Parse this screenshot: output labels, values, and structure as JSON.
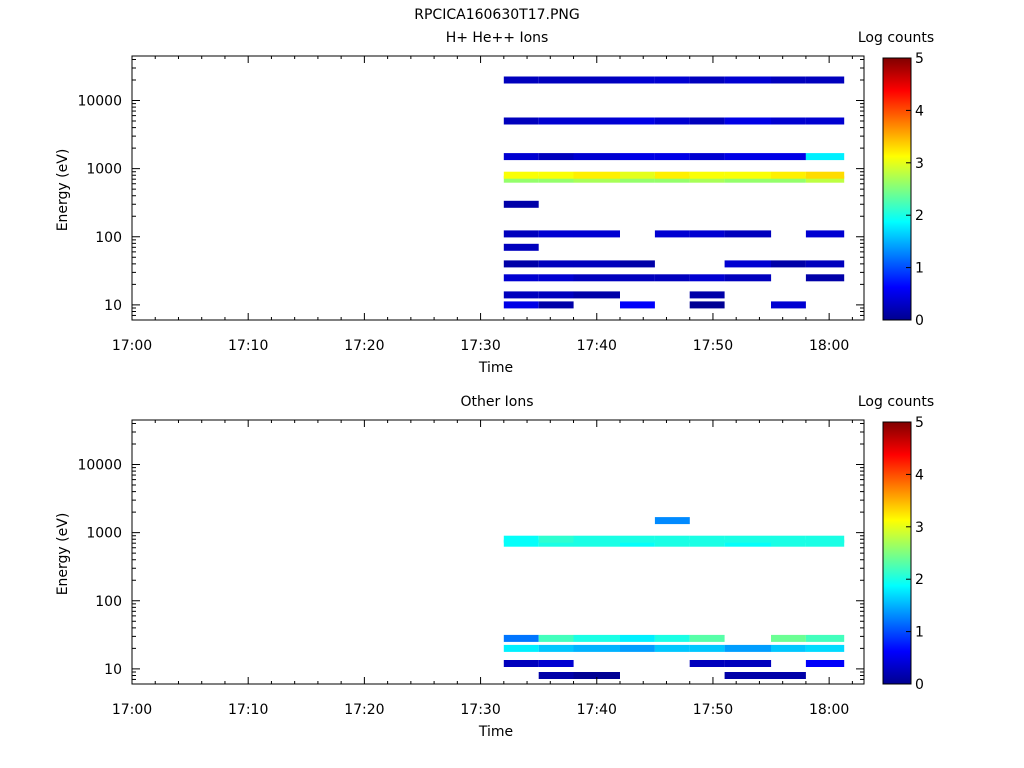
{
  "figure_title": "RPCICA160630T17.PNG",
  "chart_data": [
    {
      "type": "heatmap",
      "title": "H+ He++ Ions",
      "xlabel": "Time",
      "ylabel": "Energy (eV)",
      "x_ticks": [
        "17:00",
        "17:10",
        "17:20",
        "17:30",
        "17:40",
        "17:50",
        "18:00"
      ],
      "y_ticks": [
        "10",
        "100",
        "1000",
        "10000"
      ],
      "y_scale": "log",
      "ylim": [
        6,
        45000
      ],
      "xlim_minutes": [
        0,
        63
      ],
      "colorbar": {
        "label": "Log counts",
        "ticks": [
          "0",
          "1",
          "2",
          "3",
          "4",
          "5"
        ],
        "range": [
          0,
          5
        ]
      },
      "time_columns": [
        "17:32",
        "17:35",
        "17:38",
        "17:42",
        "17:45",
        "17:48",
        "17:51",
        "17:55",
        "17:58"
      ],
      "grid": false,
      "series": [
        {
          "time": "17:32",
          "log_counts_by_energy": [
            {
              "energy_ev": 10,
              "value": 0.5
            },
            {
              "energy_ev": 14,
              "value": 0.3
            },
            {
              "energy_ev": 25,
              "value": 0.4
            },
            {
              "energy_ev": 40,
              "value": 0.2
            },
            {
              "energy_ev": 70,
              "value": 0.3
            },
            {
              "energy_ev": 110,
              "value": 0.3
            },
            {
              "energy_ev": 300,
              "value": 0.2
            },
            {
              "energy_ev": 700,
              "value": 2.6
            },
            {
              "energy_ev": 800,
              "value": 3.1
            },
            {
              "energy_ev": 1500,
              "value": 0.4
            },
            {
              "energy_ev": 5000,
              "value": 0.3
            },
            {
              "energy_ev": 20000,
              "value": 0.3
            }
          ]
        },
        {
          "time": "17:35",
          "log_counts_by_energy": [
            {
              "energy_ev": 10,
              "value": 0.2
            },
            {
              "energy_ev": 14,
              "value": 0.3
            },
            {
              "energy_ev": 25,
              "value": 0.4
            },
            {
              "energy_ev": 40,
              "value": 0.3
            },
            {
              "energy_ev": 110,
              "value": 0.4
            },
            {
              "energy_ev": 700,
              "value": 2.6
            },
            {
              "energy_ev": 800,
              "value": 3.1
            },
            {
              "energy_ev": 1500,
              "value": 0.3
            },
            {
              "energy_ev": 5000,
              "value": 0.4
            },
            {
              "energy_ev": 20000,
              "value": 0.3
            }
          ]
        },
        {
          "time": "17:38",
          "log_counts_by_energy": [
            {
              "energy_ev": 14,
              "value": 0.2
            },
            {
              "energy_ev": 25,
              "value": 0.3
            },
            {
              "energy_ev": 40,
              "value": 0.3
            },
            {
              "energy_ev": 110,
              "value": 0.4
            },
            {
              "energy_ev": 700,
              "value": 2.7
            },
            {
              "energy_ev": 800,
              "value": 3.2
            },
            {
              "energy_ev": 1500,
              "value": 0.4
            },
            {
              "energy_ev": 5000,
              "value": 0.4
            },
            {
              "energy_ev": 20000,
              "value": 0.3
            }
          ]
        },
        {
          "time": "17:42",
          "log_counts_by_energy": [
            {
              "energy_ev": 10,
              "value": 0.6
            },
            {
              "energy_ev": 25,
              "value": 0.3
            },
            {
              "energy_ev": 40,
              "value": 0.2
            },
            {
              "energy_ev": 700,
              "value": 2.6
            },
            {
              "energy_ev": 800,
              "value": 3.0
            },
            {
              "energy_ev": 1500,
              "value": 0.5
            },
            {
              "energy_ev": 5000,
              "value": 0.5
            },
            {
              "energy_ev": 20000,
              "value": 0.4
            }
          ]
        },
        {
          "time": "17:45",
          "log_counts_by_energy": [
            {
              "energy_ev": 25,
              "value": 0.3
            },
            {
              "energy_ev": 110,
              "value": 0.4
            },
            {
              "energy_ev": 700,
              "value": 2.6
            },
            {
              "energy_ev": 800,
              "value": 3.2
            },
            {
              "energy_ev": 1500,
              "value": 0.5
            },
            {
              "energy_ev": 5000,
              "value": 0.4
            },
            {
              "energy_ev": 20000,
              "value": 0.4
            }
          ]
        },
        {
          "time": "17:48",
          "log_counts_by_energy": [
            {
              "energy_ev": 10,
              "value": 0.1
            },
            {
              "energy_ev": 14,
              "value": 0.2
            },
            {
              "energy_ev": 25,
              "value": 0.4
            },
            {
              "energy_ev": 110,
              "value": 0.4
            },
            {
              "energy_ev": 700,
              "value": 2.7
            },
            {
              "energy_ev": 800,
              "value": 3.1
            },
            {
              "energy_ev": 1500,
              "value": 0.4
            },
            {
              "energy_ev": 5000,
              "value": 0.3
            },
            {
              "energy_ev": 20000,
              "value": 0.3
            }
          ]
        },
        {
          "time": "17:51",
          "log_counts_by_energy": [
            {
              "energy_ev": 25,
              "value": 0.3
            },
            {
              "energy_ev": 40,
              "value": 0.4
            },
            {
              "energy_ev": 110,
              "value": 0.3
            },
            {
              "energy_ev": 700,
              "value": 2.6
            },
            {
              "energy_ev": 800,
              "value": 3.1
            },
            {
              "energy_ev": 1500,
              "value": 0.5
            },
            {
              "energy_ev": 5000,
              "value": 0.5
            },
            {
              "energy_ev": 20000,
              "value": 0.4
            }
          ]
        },
        {
          "time": "17:55",
          "log_counts_by_energy": [
            {
              "energy_ev": 10,
              "value": 0.4
            },
            {
              "energy_ev": 40,
              "value": 0.2
            },
            {
              "energy_ev": 700,
              "value": 2.6
            },
            {
              "energy_ev": 800,
              "value": 3.2
            },
            {
              "energy_ev": 1500,
              "value": 0.5
            },
            {
              "energy_ev": 5000,
              "value": 0.4
            },
            {
              "energy_ev": 20000,
              "value": 0.3
            }
          ]
        },
        {
          "time": "17:58",
          "log_counts_by_energy": [
            {
              "energy_ev": 25,
              "value": 0.2
            },
            {
              "energy_ev": 40,
              "value": 0.3
            },
            {
              "energy_ev": 110,
              "value": 0.4
            },
            {
              "energy_ev": 700,
              "value": 2.8
            },
            {
              "energy_ev": 800,
              "value": 3.3
            },
            {
              "energy_ev": 1500,
              "value": 1.8
            },
            {
              "energy_ev": 5000,
              "value": 0.4
            },
            {
              "energy_ev": 20000,
              "value": 0.3
            }
          ]
        }
      ]
    },
    {
      "type": "heatmap",
      "title": "Other Ions",
      "xlabel": "Time",
      "ylabel": "Energy (eV)",
      "x_ticks": [
        "17:00",
        "17:10",
        "17:20",
        "17:30",
        "17:40",
        "17:50",
        "18:00"
      ],
      "y_ticks": [
        "10",
        "100",
        "1000",
        "10000"
      ],
      "y_scale": "log",
      "ylim": [
        6,
        45000
      ],
      "xlim_minutes": [
        0,
        63
      ],
      "colorbar": {
        "label": "Log counts",
        "ticks": [
          "0",
          "1",
          "2",
          "3",
          "4",
          "5"
        ],
        "range": [
          0,
          5
        ]
      },
      "time_columns": [
        "17:32",
        "17:35",
        "17:38",
        "17:42",
        "17:45",
        "17:48",
        "17:51",
        "17:55",
        "17:58"
      ],
      "grid": false,
      "series": [
        {
          "time": "17:32",
          "log_counts_by_energy": [
            {
              "energy_ev": 12,
              "value": 0.3
            },
            {
              "energy_ev": 20,
              "value": 1.8
            },
            {
              "energy_ev": 28,
              "value": 1.2
            },
            {
              "energy_ev": 700,
              "value": 1.9
            },
            {
              "energy_ev": 800,
              "value": 1.9
            }
          ]
        },
        {
          "time": "17:35",
          "log_counts_by_energy": [
            {
              "energy_ev": 8,
              "value": 0.2
            },
            {
              "energy_ev": 12,
              "value": 0.4
            },
            {
              "energy_ev": 20,
              "value": 1.6
            },
            {
              "energy_ev": 28,
              "value": 2.2
            },
            {
              "energy_ev": 700,
              "value": 2.0
            },
            {
              "energy_ev": 800,
              "value": 2.1
            }
          ]
        },
        {
          "time": "17:38",
          "log_counts_by_energy": [
            {
              "energy_ev": 8,
              "value": 0.1
            },
            {
              "energy_ev": 20,
              "value": 1.5
            },
            {
              "energy_ev": 28,
              "value": 2.0
            },
            {
              "energy_ev": 700,
              "value": 2.0
            },
            {
              "energy_ev": 800,
              "value": 2.0
            }
          ]
        },
        {
          "time": "17:42",
          "log_counts_by_energy": [
            {
              "energy_ev": 20,
              "value": 1.4
            },
            {
              "energy_ev": 28,
              "value": 1.8
            },
            {
              "energy_ev": 700,
              "value": 1.9
            },
            {
              "energy_ev": 800,
              "value": 2.0
            }
          ]
        },
        {
          "time": "17:45",
          "log_counts_by_energy": [
            {
              "energy_ev": 20,
              "value": 1.6
            },
            {
              "energy_ev": 28,
              "value": 2.0
            },
            {
              "energy_ev": 700,
              "value": 2.0
            },
            {
              "energy_ev": 800,
              "value": 2.0
            },
            {
              "energy_ev": 1500,
              "value": 1.3
            }
          ]
        },
        {
          "time": "17:48",
          "log_counts_by_energy": [
            {
              "energy_ev": 12,
              "value": 0.3
            },
            {
              "energy_ev": 20,
              "value": 1.6
            },
            {
              "energy_ev": 28,
              "value": 2.3
            },
            {
              "energy_ev": 700,
              "value": 2.0
            },
            {
              "energy_ev": 800,
              "value": 2.0
            }
          ]
        },
        {
          "time": "17:51",
          "log_counts_by_energy": [
            {
              "energy_ev": 8,
              "value": 0.2
            },
            {
              "energy_ev": 12,
              "value": 0.3
            },
            {
              "energy_ev": 20,
              "value": 1.4
            },
            {
              "energy_ev": 700,
              "value": 1.9
            },
            {
              "energy_ev": 800,
              "value": 2.0
            }
          ]
        },
        {
          "time": "17:55",
          "log_counts_by_energy": [
            {
              "energy_ev": 8,
              "value": 0.2
            },
            {
              "energy_ev": 20,
              "value": 1.6
            },
            {
              "energy_ev": 28,
              "value": 2.4
            },
            {
              "energy_ev": 700,
              "value": 2.0
            },
            {
              "energy_ev": 800,
              "value": 2.0
            }
          ]
        },
        {
          "time": "17:58",
          "log_counts_by_energy": [
            {
              "energy_ev": 12,
              "value": 0.6
            },
            {
              "energy_ev": 20,
              "value": 1.7
            },
            {
              "energy_ev": 28,
              "value": 2.2
            },
            {
              "energy_ev": 700,
              "value": 2.0
            },
            {
              "energy_ev": 800,
              "value": 2.0
            }
          ]
        }
      ]
    }
  ]
}
